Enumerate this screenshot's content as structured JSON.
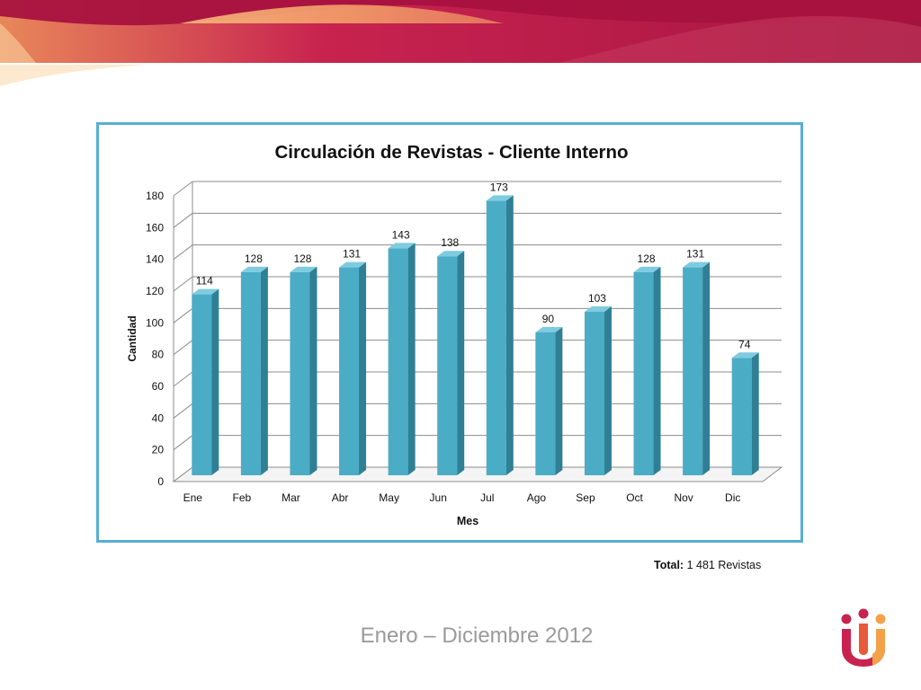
{
  "footer": {
    "total_label": "Total:",
    "total_value": "1 481 Revistas",
    "period": "Enero – Diciembre 2012"
  },
  "colors": {
    "bar_front": "#4bacc6",
    "bar_side": "#2f7f95",
    "bar_top": "#7fcbe0",
    "frame": "#58aed2",
    "banner_dark": "#a8123f",
    "banner_mid": "#c8234f",
    "banner_light": "#f4a26c"
  },
  "chart_data": {
    "type": "bar",
    "title": "Circulación de Revistas - Cliente Interno",
    "xlabel": "Mes",
    "ylabel": "Cantidad",
    "categories": [
      "Ene",
      "Feb",
      "Mar",
      "Abr",
      "May",
      "Jun",
      "Jul",
      "Ago",
      "Sep",
      "Oct",
      "Nov",
      "Dic"
    ],
    "values": [
      114,
      128,
      128,
      131,
      143,
      138,
      173,
      90,
      103,
      128,
      131,
      74
    ],
    "data_labels": [
      "114",
      "128",
      "128",
      "131",
      "143",
      "138",
      "173",
      "90",
      "103",
      "128",
      "131",
      "74"
    ],
    "ylim": [
      0,
      180
    ],
    "yticks": [
      0,
      20,
      40,
      60,
      80,
      100,
      120,
      140,
      160,
      180
    ],
    "grid": true,
    "style": "3d-column",
    "legend": "none"
  }
}
